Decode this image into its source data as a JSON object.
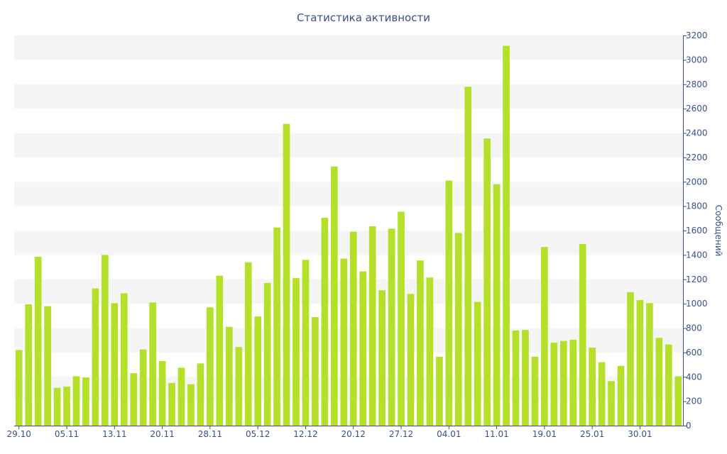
{
  "colors": {
    "bar": "#b5e02a",
    "text": "#3a4f8c",
    "band": "#f5f5f5",
    "axis": "#3a4f8c"
  },
  "chart_data": {
    "type": "bar",
    "title": "Статистика активности",
    "ylabel": "Сообщений",
    "xlabel": "",
    "ylim": [
      0,
      3200
    ],
    "y_axis_position": "right",
    "y_ticks": [
      0,
      200,
      400,
      600,
      800,
      1000,
      1200,
      1400,
      1600,
      1800,
      2000,
      2200,
      2400,
      2600,
      2800,
      3000,
      3200
    ],
    "grid": "alternating horizontal bands",
    "x_tick_labels": [
      {
        "label": "29.10",
        "index": 0
      },
      {
        "label": "05.11",
        "index": 5
      },
      {
        "label": "13.11",
        "index": 10
      },
      {
        "label": "20.11",
        "index": 15
      },
      {
        "label": "28.11",
        "index": 20
      },
      {
        "label": "05.12",
        "index": 25
      },
      {
        "label": "12.12",
        "index": 30
      },
      {
        "label": "20.12",
        "index": 35
      },
      {
        "label": "27.12",
        "index": 40
      },
      {
        "label": "04.01",
        "index": 45
      },
      {
        "label": "11.01",
        "index": 50
      },
      {
        "label": "19.01",
        "index": 55
      },
      {
        "label": "25.01",
        "index": 60
      },
      {
        "label": "30.01",
        "index": 65
      }
    ],
    "values": [
      620,
      995,
      1385,
      980,
      310,
      320,
      405,
      395,
      1125,
      1400,
      1005,
      1085,
      430,
      625,
      1010,
      530,
      350,
      475,
      340,
      510,
      970,
      1230,
      810,
      645,
      1340,
      895,
      1170,
      1625,
      2475,
      1210,
      1360,
      890,
      1705,
      2125,
      1370,
      1590,
      1265,
      1635,
      1110,
      1615,
      1755,
      1080,
      1355,
      1215,
      565,
      2010,
      1580,
      2780,
      1015,
      2355,
      1980,
      3115,
      780,
      785,
      565,
      1465,
      680,
      695,
      705,
      1490,
      640,
      520,
      365,
      490,
      1095,
      1030,
      1005,
      720,
      665,
      405
    ]
  }
}
